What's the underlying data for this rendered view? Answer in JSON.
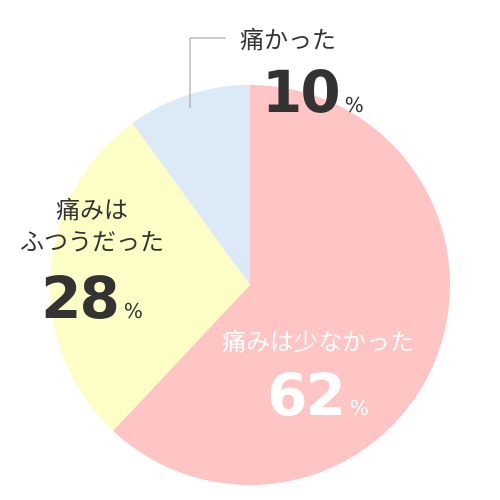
{
  "chart_data": {
    "type": "pie",
    "start_angle_deg": 0,
    "direction": "clockwise",
    "slices": [
      {
        "label": "痛みは少なかった",
        "value": 62,
        "value_text": "62",
        "unit": "%",
        "color": "#ffc4c4",
        "text_color": "#ffffff"
      },
      {
        "label": "痛みは\nふつうだった",
        "value": 28,
        "value_text": "28",
        "unit": "%",
        "color": "#fdfdc6",
        "text_color": "#333333"
      },
      {
        "label": "痛かった",
        "value": 10,
        "value_text": "10",
        "unit": "%",
        "color": "#dbeaf6",
        "text_color": "#333333"
      }
    ]
  }
}
